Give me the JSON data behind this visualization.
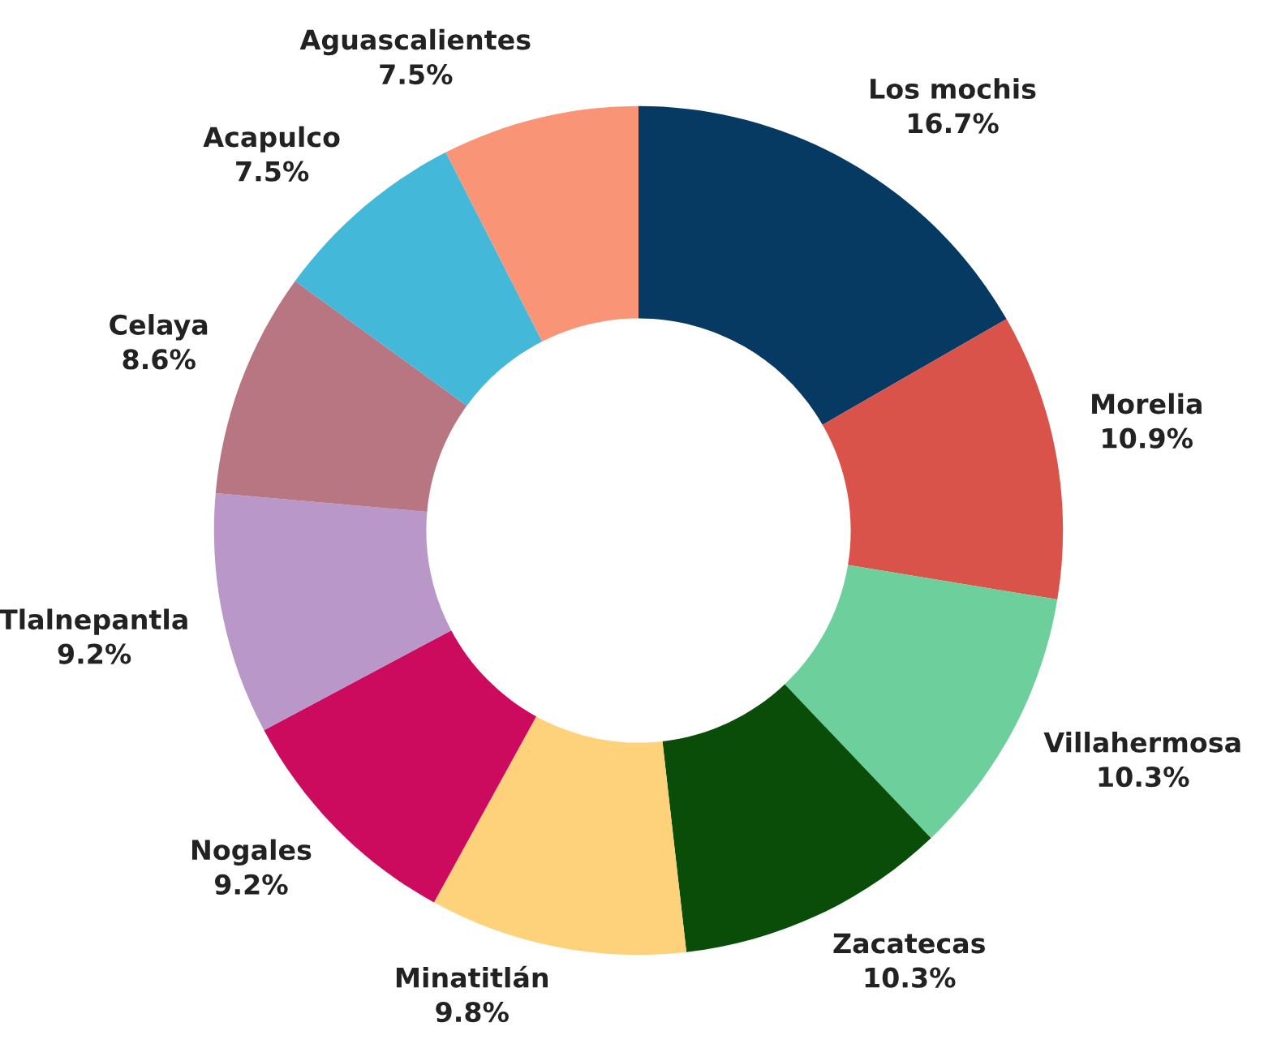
{
  "chart_data": {
    "type": "donut",
    "categories": [
      "Los mochis",
      "Morelia",
      "Villahermosa",
      "Zacatecas",
      "Minatitlán",
      "Nogales",
      "Tlalnepantla",
      "Celaya",
      "Acapulco",
      "Aguascalientes"
    ],
    "values": [
      16.7,
      10.9,
      10.3,
      10.3,
      9.8,
      9.2,
      9.2,
      8.6,
      7.5,
      7.5
    ],
    "colors": [
      "#073a62",
      "#d9534a",
      "#6dd09c",
      "#0a4d08",
      "#fdd27a",
      "#cc0a5e",
      "#b997c9",
      "#b87582",
      "#43b8d8",
      "#fa9477"
    ],
    "value_labels": [
      "16.7%",
      "10.9%",
      "10.3%",
      "10.3%",
      "9.8%",
      "9.2%",
      "9.2%",
      "8.6%",
      "7.5%",
      "7.5%"
    ]
  }
}
